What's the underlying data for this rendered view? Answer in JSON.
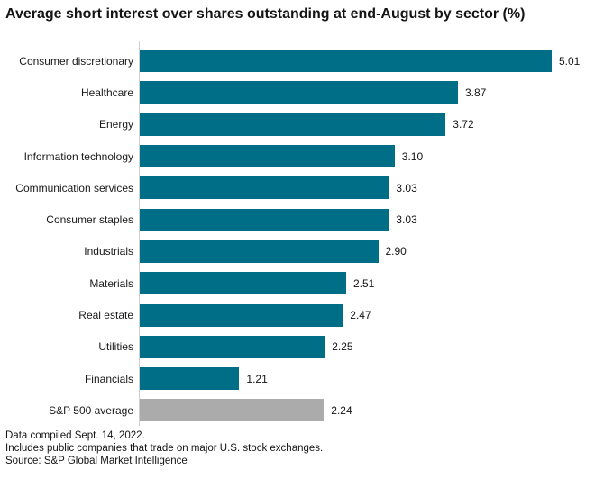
{
  "title": "Average short interest over shares outstanding at end-August by sector (%)",
  "chart_data": {
    "type": "bar",
    "orientation": "horizontal",
    "title": "Average short interest over shares outstanding at end-August by sector (%)",
    "categories": [
      "Consumer discretionary",
      "Healthcare",
      "Energy",
      "Information technology",
      "Communication services",
      "Consumer staples",
      "Industrials",
      "Materials",
      "Real estate",
      "Utilities",
      "Financials",
      "S&P 500 average"
    ],
    "values": [
      5.01,
      3.87,
      3.72,
      3.1,
      3.03,
      3.03,
      2.9,
      2.51,
      2.47,
      2.25,
      1.21,
      2.24
    ],
    "value_labels": [
      "5.01",
      "3.87",
      "3.72",
      "3.10",
      "3.03",
      "3.03",
      "2.90",
      "2.51",
      "2.47",
      "2.25",
      "1.21",
      "2.24"
    ],
    "average_index": 11,
    "xlim": [
      0,
      5.01
    ],
    "grid": false,
    "legend": false
  },
  "colors": {
    "bar_teal": "#006e87",
    "average_gray": "#ababab",
    "axis_line": "#cfcfcf",
    "text": "#141414"
  },
  "footnotes": [
    "Data compiled Sept. 14, 2022.",
    "Includes public companies that trade on major U.S. stock exchanges.",
    "Source: S&P Global Market Intelligence"
  ]
}
